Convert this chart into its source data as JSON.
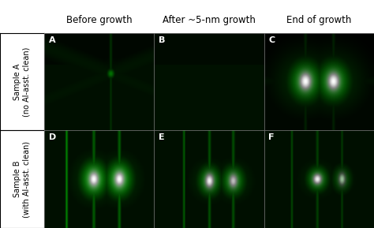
{
  "col_labels": [
    "Before growth",
    "After ~5-nm growth",
    "End of growth"
  ],
  "row_labels": [
    "Sample A\n(no Al-asst. clean)",
    "Sample B\n(with Al-asst. clean)"
  ],
  "panel_labels": [
    [
      "A",
      "B",
      "C"
    ],
    [
      "D",
      "E",
      "F"
    ]
  ],
  "panel_label_fontsize": 8,
  "col_label_fontsize": 8.5,
  "row_label_fontsize": 7,
  "figsize": [
    4.74,
    2.89
  ],
  "dpi": 100
}
